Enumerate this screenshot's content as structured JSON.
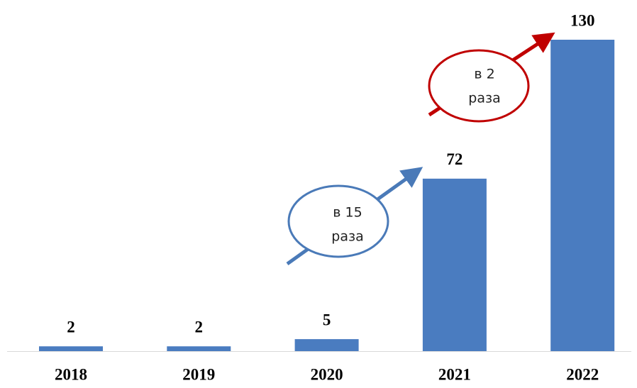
{
  "chart_data": {
    "type": "bar",
    "categories": [
      "2018",
      "2019",
      "2020",
      "2021",
      "2022"
    ],
    "values": [
      2,
      2,
      5,
      72,
      130
    ],
    "color": "#4a7cc0",
    "annotations": [
      {
        "lines": [
          "в 15",
          "раза"
        ]
      },
      {
        "lines": [
          "в 2",
          "раза"
        ]
      }
    ]
  }
}
